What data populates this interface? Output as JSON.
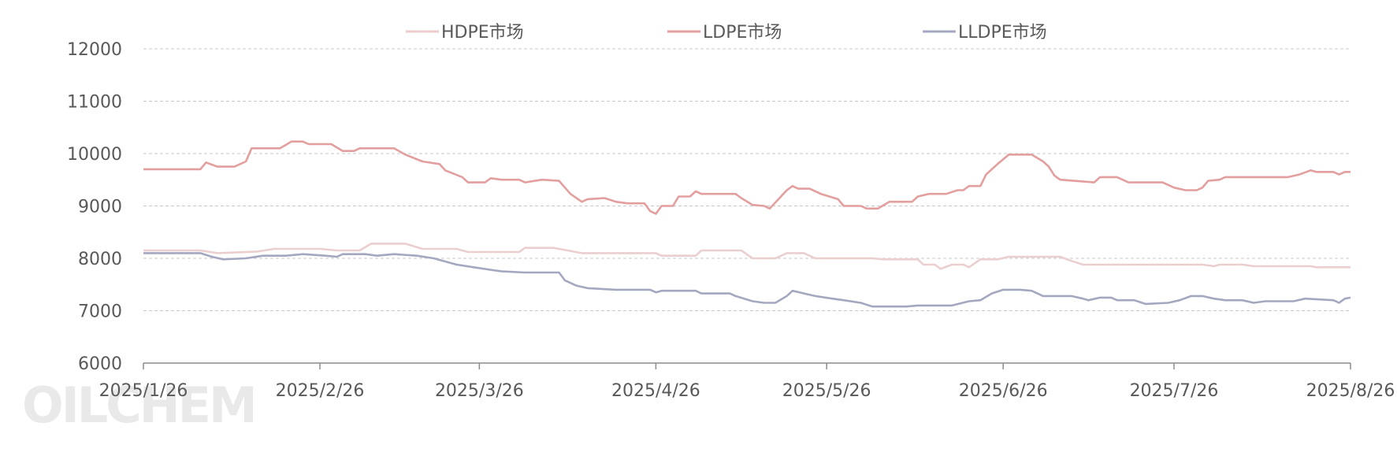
{
  "chart_data": {
    "type": "line",
    "watermark": "OILCHEM",
    "x_ticks": [
      "2025/1/26",
      "2025/2/26",
      "2025/3/26",
      "2025/4/26",
      "2025/5/26",
      "2025/6/26",
      "2025/7/26",
      "2025/8/26"
    ],
    "x_range": [
      "2025/1/26",
      "2025/8/26"
    ],
    "ylim": [
      6000,
      12000
    ],
    "y_ticks": [
      6000,
      7000,
      8000,
      9000,
      10000,
      11000,
      12000
    ],
    "grid": true,
    "legend_position": "top",
    "series": [
      {
        "name": "HDPE市场",
        "color": "#ebcfcf",
        "points": [
          [
            "2025/1/26",
            8150
          ],
          [
            "2025/2/5",
            8150
          ],
          [
            "2025/2/8",
            8100
          ],
          [
            "2025/2/15",
            8130
          ],
          [
            "2025/2/18",
            8180
          ],
          [
            "2025/2/26",
            8180
          ],
          [
            "2025/3/1",
            8150
          ],
          [
            "2025/3/5",
            8150
          ],
          [
            "2025/3/7",
            8280
          ],
          [
            "2025/3/13",
            8280
          ],
          [
            "2025/3/16",
            8180
          ],
          [
            "2025/3/22",
            8180
          ],
          [
            "2025/3/24",
            8120
          ],
          [
            "2025/4/2",
            8120
          ],
          [
            "2025/4/3",
            8200
          ],
          [
            "2025/4/8",
            8200
          ],
          [
            "2025/4/13",
            8100
          ],
          [
            "2025/4/26",
            8100
          ],
          [
            "2025/4/27",
            8050
          ],
          [
            "2025/5/3",
            8050
          ],
          [
            "2025/5/4",
            8150
          ],
          [
            "2025/5/11",
            8150
          ],
          [
            "2025/5/13",
            8000
          ],
          [
            "2025/5/17",
            8000
          ],
          [
            "2025/5/19",
            8100
          ],
          [
            "2025/5/22",
            8100
          ],
          [
            "2025/5/24",
            8000
          ],
          [
            "2025/6/3",
            8000
          ],
          [
            "2025/6/5",
            7980
          ],
          [
            "2025/6/11",
            7980
          ],
          [
            "2025/6/12",
            7880
          ],
          [
            "2025/6/14",
            7880
          ],
          [
            "2025/6/15",
            7800
          ],
          [
            "2025/6/17",
            7880
          ],
          [
            "2025/6/19",
            7880
          ],
          [
            "2025/6/20",
            7830
          ],
          [
            "2025/6/22",
            7980
          ],
          [
            "2025/6/25",
            7980
          ],
          [
            "2025/6/27",
            8030
          ],
          [
            "2025/7/6",
            8030
          ],
          [
            "2025/7/8",
            7950
          ],
          [
            "2025/7/10",
            7880
          ],
          [
            "2025/7/31",
            7880
          ],
          [
            "2025/8/2",
            7850
          ],
          [
            "2025/8/3",
            7880
          ],
          [
            "2025/8/7",
            7880
          ],
          [
            "2025/8/9",
            7850
          ],
          [
            "2025/8/19",
            7850
          ],
          [
            "2025/8/20",
            7830
          ],
          [
            "2025/8/26",
            7830
          ]
        ]
      },
      {
        "name": "LDPE市场",
        "color": "#e39e9e",
        "points": [
          [
            "2025/1/26",
            9700
          ],
          [
            "2025/2/5",
            9700
          ],
          [
            "2025/2/6",
            9830
          ],
          [
            "2025/2/8",
            9750
          ],
          [
            "2025/2/11",
            9750
          ],
          [
            "2025/2/13",
            9850
          ],
          [
            "2025/2/14",
            10100
          ],
          [
            "2025/2/19",
            10100
          ],
          [
            "2025/2/21",
            10230
          ],
          [
            "2025/2/23",
            10230
          ],
          [
            "2025/2/24",
            10180
          ],
          [
            "2025/2/28",
            10180
          ],
          [
            "2025/3/2",
            10050
          ],
          [
            "2025/3/4",
            10050
          ],
          [
            "2025/3/5",
            10100
          ],
          [
            "2025/3/11",
            10100
          ],
          [
            "2025/3/13",
            9980
          ],
          [
            "2025/3/16",
            9850
          ],
          [
            "2025/3/19",
            9800
          ],
          [
            "2025/3/20",
            9680
          ],
          [
            "2025/3/23",
            9550
          ],
          [
            "2025/3/24",
            9450
          ],
          [
            "2025/3/27",
            9450
          ],
          [
            "2025/3/28",
            9530
          ],
          [
            "2025/3/30",
            9500
          ],
          [
            "2025/4/2",
            9500
          ],
          [
            "2025/4/3",
            9450
          ],
          [
            "2025/4/6",
            9500
          ],
          [
            "2025/4/9",
            9480
          ],
          [
            "2025/4/11",
            9230
          ],
          [
            "2025/4/13",
            9080
          ],
          [
            "2025/4/14",
            9130
          ],
          [
            "2025/4/17",
            9150
          ],
          [
            "2025/4/19",
            9080
          ],
          [
            "2025/4/21",
            9050
          ],
          [
            "2025/4/24",
            9050
          ],
          [
            "2025/4/25",
            8900
          ],
          [
            "2025/4/26",
            8850
          ],
          [
            "2025/4/27",
            9000
          ],
          [
            "2025/4/29",
            9000
          ],
          [
            "2025/4/30",
            9180
          ],
          [
            "2025/5/2",
            9180
          ],
          [
            "2025/5/3",
            9280
          ],
          [
            "2025/5/4",
            9230
          ],
          [
            "2025/5/10",
            9230
          ],
          [
            "2025/5/11",
            9150
          ],
          [
            "2025/5/13",
            9020
          ],
          [
            "2025/5/15",
            9000
          ],
          [
            "2025/5/16",
            8950
          ],
          [
            "2025/5/19",
            9300
          ],
          [
            "2025/5/20",
            9380
          ],
          [
            "2025/5/21",
            9330
          ],
          [
            "2025/5/23",
            9330
          ],
          [
            "2025/5/25",
            9230
          ],
          [
            "2025/5/28",
            9130
          ],
          [
            "2025/5/29",
            9000
          ],
          [
            "2025/6/1",
            9000
          ],
          [
            "2025/6/2",
            8950
          ],
          [
            "2025/6/4",
            8950
          ],
          [
            "2025/6/6",
            9080
          ],
          [
            "2025/6/10",
            9080
          ],
          [
            "2025/6/11",
            9180
          ],
          [
            "2025/6/13",
            9230
          ],
          [
            "2025/6/16",
            9230
          ],
          [
            "2025/6/18",
            9300
          ],
          [
            "2025/6/19",
            9300
          ],
          [
            "2025/6/20",
            9380
          ],
          [
            "2025/6/22",
            9380
          ],
          [
            "2025/6/23",
            9600
          ],
          [
            "2025/6/25",
            9800
          ],
          [
            "2025/6/27",
            9980
          ],
          [
            "2025/6/29",
            9980
          ],
          [
            "2025/7/1",
            9980
          ],
          [
            "2025/7/3",
            9850
          ],
          [
            "2025/7/4",
            9750
          ],
          [
            "2025/7/5",
            9580
          ],
          [
            "2025/7/6",
            9500
          ],
          [
            "2025/7/12",
            9450
          ],
          [
            "2025/7/13",
            9550
          ],
          [
            "2025/7/16",
            9550
          ],
          [
            "2025/7/18",
            9450
          ],
          [
            "2025/7/24",
            9450
          ],
          [
            "2025/7/26",
            9350
          ],
          [
            "2025/7/28",
            9300
          ],
          [
            "2025/7/30",
            9300
          ],
          [
            "2025/7/31",
            9350
          ],
          [
            "2025/8/1",
            9480
          ],
          [
            "2025/8/3",
            9500
          ],
          [
            "2025/8/4",
            9550
          ],
          [
            "2025/8/15",
            9550
          ],
          [
            "2025/8/17",
            9600
          ],
          [
            "2025/8/19",
            9680
          ],
          [
            "2025/8/20",
            9650
          ],
          [
            "2025/8/23",
            9650
          ],
          [
            "2025/8/24",
            9600
          ],
          [
            "2025/8/25",
            9650
          ],
          [
            "2025/8/26",
            9650
          ]
        ]
      },
      {
        "name": "LLDPE市场",
        "color": "#a3a8c0",
        "points": [
          [
            "2025/1/26",
            8100
          ],
          [
            "2025/2/5",
            8100
          ],
          [
            "2025/2/7",
            8030
          ],
          [
            "2025/2/9",
            7980
          ],
          [
            "2025/2/13",
            8000
          ],
          [
            "2025/2/16",
            8050
          ],
          [
            "2025/2/20",
            8050
          ],
          [
            "2025/2/23",
            8080
          ],
          [
            "2025/2/27",
            8050
          ],
          [
            "2025/3/1",
            8030
          ],
          [
            "2025/3/2",
            8080
          ],
          [
            "2025/3/6",
            8080
          ],
          [
            "2025/3/8",
            8050
          ],
          [
            "2025/3/11",
            8080
          ],
          [
            "2025/3/15",
            8050
          ],
          [
            "2025/3/18",
            8000
          ],
          [
            "2025/3/22",
            7880
          ],
          [
            "2025/3/25",
            7830
          ],
          [
            "2025/3/28",
            7780
          ],
          [
            "2025/3/30",
            7750
          ],
          [
            "2025/4/3",
            7730
          ],
          [
            "2025/4/9",
            7730
          ],
          [
            "2025/4/10",
            7580
          ],
          [
            "2025/4/12",
            7480
          ],
          [
            "2025/4/14",
            7430
          ],
          [
            "2025/4/19",
            7400
          ],
          [
            "2025/4/21",
            7400
          ],
          [
            "2025/4/25",
            7400
          ],
          [
            "2025/4/26",
            7350
          ],
          [
            "2025/4/27",
            7380
          ],
          [
            "2025/5/3",
            7380
          ],
          [
            "2025/5/4",
            7330
          ],
          [
            "2025/5/9",
            7330
          ],
          [
            "2025/5/10",
            7280
          ],
          [
            "2025/5/13",
            7180
          ],
          [
            "2025/5/15",
            7150
          ],
          [
            "2025/5/17",
            7150
          ],
          [
            "2025/5/19",
            7280
          ],
          [
            "2025/5/20",
            7380
          ],
          [
            "2025/5/22",
            7330
          ],
          [
            "2025/5/24",
            7280
          ],
          [
            "2025/5/27",
            7230
          ],
          [
            "2025/5/29",
            7200
          ],
          [
            "2025/6/1",
            7150
          ],
          [
            "2025/6/3",
            7080
          ],
          [
            "2025/6/6",
            7080
          ],
          [
            "2025/6/9",
            7080
          ],
          [
            "2025/6/11",
            7100
          ],
          [
            "2025/6/13",
            7100
          ],
          [
            "2025/6/17",
            7100
          ],
          [
            "2025/6/20",
            7180
          ],
          [
            "2025/6/22",
            7200
          ],
          [
            "2025/6/24",
            7330
          ],
          [
            "2025/6/26",
            7400
          ],
          [
            "2025/6/29",
            7400
          ],
          [
            "2025/7/1",
            7380
          ],
          [
            "2025/7/3",
            7280
          ],
          [
            "2025/7/8",
            7280
          ],
          [
            "2025/7/10",
            7230
          ],
          [
            "2025/7/11",
            7200
          ],
          [
            "2025/7/13",
            7250
          ],
          [
            "2025/7/15",
            7250
          ],
          [
            "2025/7/16",
            7200
          ],
          [
            "2025/7/19",
            7200
          ],
          [
            "2025/7/21",
            7130
          ],
          [
            "2025/7/25",
            7150
          ],
          [
            "2025/7/27",
            7200
          ],
          [
            "2025/7/29",
            7280
          ],
          [
            "2025/7/31",
            7280
          ],
          [
            "2025/8/2",
            7230
          ],
          [
            "2025/8/4",
            7200
          ],
          [
            "2025/8/7",
            7200
          ],
          [
            "2025/8/9",
            7150
          ],
          [
            "2025/8/11",
            7180
          ],
          [
            "2025/8/16",
            7180
          ],
          [
            "2025/8/18",
            7230
          ],
          [
            "2025/8/23",
            7200
          ],
          [
            "2025/8/24",
            7150
          ],
          [
            "2025/8/25",
            7230
          ],
          [
            "2025/8/26",
            7250
          ]
        ]
      }
    ]
  }
}
